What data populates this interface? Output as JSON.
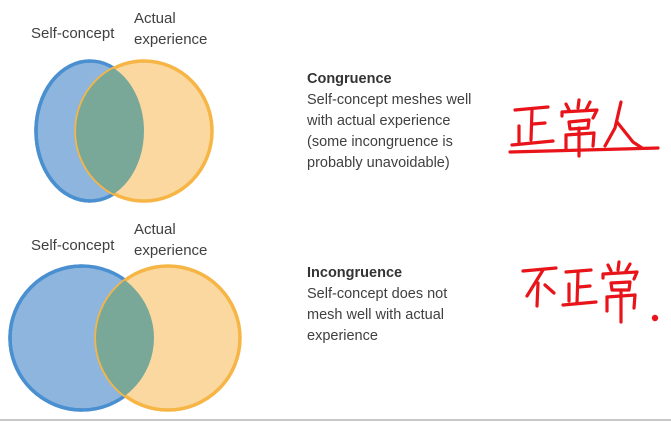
{
  "congruence": {
    "label_self": "Self-concept",
    "label_actual_line1": "Actual",
    "label_actual_line2": "experience",
    "title": "Congruence",
    "description_lines": [
      "Self-concept meshes well",
      "with actual experience",
      "(some incongruence is",
      "probably unavoidable)"
    ],
    "handwritten_note": "正常人"
  },
  "incongruence": {
    "label_self": "Self-concept",
    "label_actual_line1": "Actual",
    "label_actual_line2": "experience",
    "title": "Incongruence",
    "description_lines": [
      "Self-concept does not",
      "mesh well with actual",
      "experience"
    ],
    "handwritten_note": "不正常."
  },
  "colors": {
    "self_fill": "#8db5de",
    "self_stroke": "#4a90d0",
    "actual_fill": "#fbd8a0",
    "actual_stroke": "#f6b544",
    "overlap_fill": "#79a898",
    "handwriting": "#e8141a"
  }
}
